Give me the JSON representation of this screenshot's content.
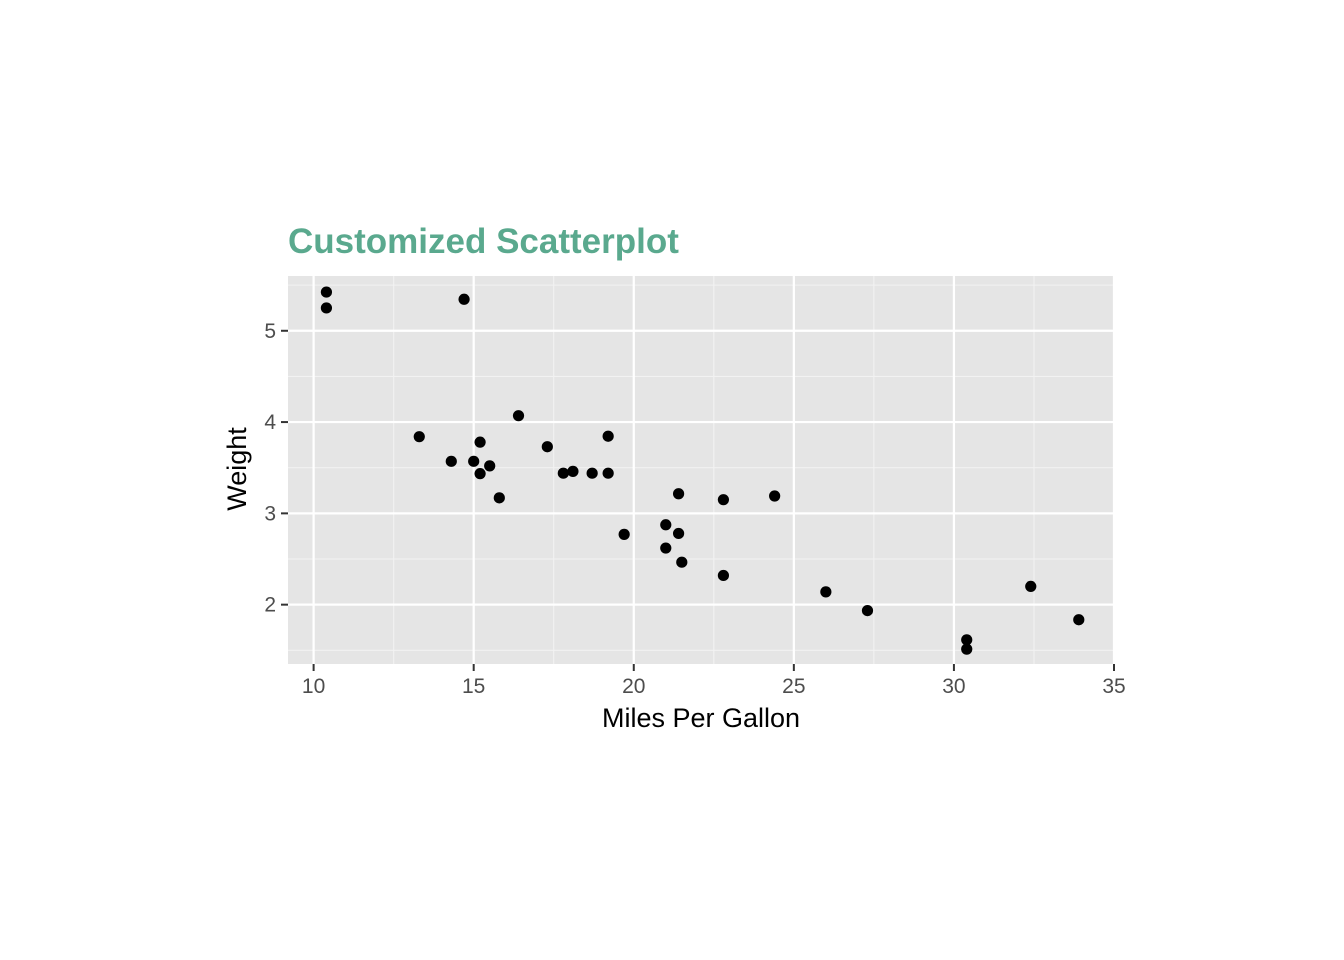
{
  "chart_data": {
    "type": "scatter",
    "title": "Customized Scatterplot",
    "xlabel": "Miles Per Gallon",
    "ylabel": "Weight",
    "xlim": [
      9.2,
      35.0
    ],
    "ylim": [
      1.35,
      5.6
    ],
    "x_ticks": [
      10,
      15,
      20,
      25,
      30,
      35
    ],
    "y_ticks": [
      2,
      3,
      4,
      5
    ],
    "grid": true,
    "legend": "none",
    "points": [
      {
        "x": 21.0,
        "y": 2.62
      },
      {
        "x": 21.0,
        "y": 2.875
      },
      {
        "x": 22.8,
        "y": 2.32
      },
      {
        "x": 21.4,
        "y": 3.215
      },
      {
        "x": 18.7,
        "y": 3.44
      },
      {
        "x": 18.1,
        "y": 3.46
      },
      {
        "x": 14.3,
        "y": 3.57
      },
      {
        "x": 24.4,
        "y": 3.19
      },
      {
        "x": 22.8,
        "y": 3.15
      },
      {
        "x": 19.2,
        "y": 3.44
      },
      {
        "x": 17.8,
        "y": 3.44
      },
      {
        "x": 16.4,
        "y": 4.07
      },
      {
        "x": 17.3,
        "y": 3.73
      },
      {
        "x": 15.2,
        "y": 3.78
      },
      {
        "x": 10.4,
        "y": 5.25
      },
      {
        "x": 10.4,
        "y": 5.424
      },
      {
        "x": 14.7,
        "y": 5.345
      },
      {
        "x": 32.4,
        "y": 2.2
      },
      {
        "x": 30.4,
        "y": 1.615
      },
      {
        "x": 33.9,
        "y": 1.835
      },
      {
        "x": 21.5,
        "y": 2.465
      },
      {
        "x": 15.5,
        "y": 3.52
      },
      {
        "x": 15.2,
        "y": 3.435
      },
      {
        "x": 13.3,
        "y": 3.84
      },
      {
        "x": 19.2,
        "y": 3.845
      },
      {
        "x": 27.3,
        "y": 1.935
      },
      {
        "x": 26.0,
        "y": 2.14
      },
      {
        "x": 30.4,
        "y": 1.513
      },
      {
        "x": 15.8,
        "y": 3.17
      },
      {
        "x": 19.7,
        "y": 2.77
      },
      {
        "x": 15.0,
        "y": 3.57
      },
      {
        "x": 21.4,
        "y": 2.78
      }
    ]
  },
  "colors": {
    "title": "#5aa98e",
    "panel_background": "#e5e5e5",
    "grid_major": "#ffffff",
    "grid_minor": "#f2f2f2",
    "point": "#000000",
    "tick_text": "#4d4d4d",
    "tick_mark": "#333333"
  }
}
